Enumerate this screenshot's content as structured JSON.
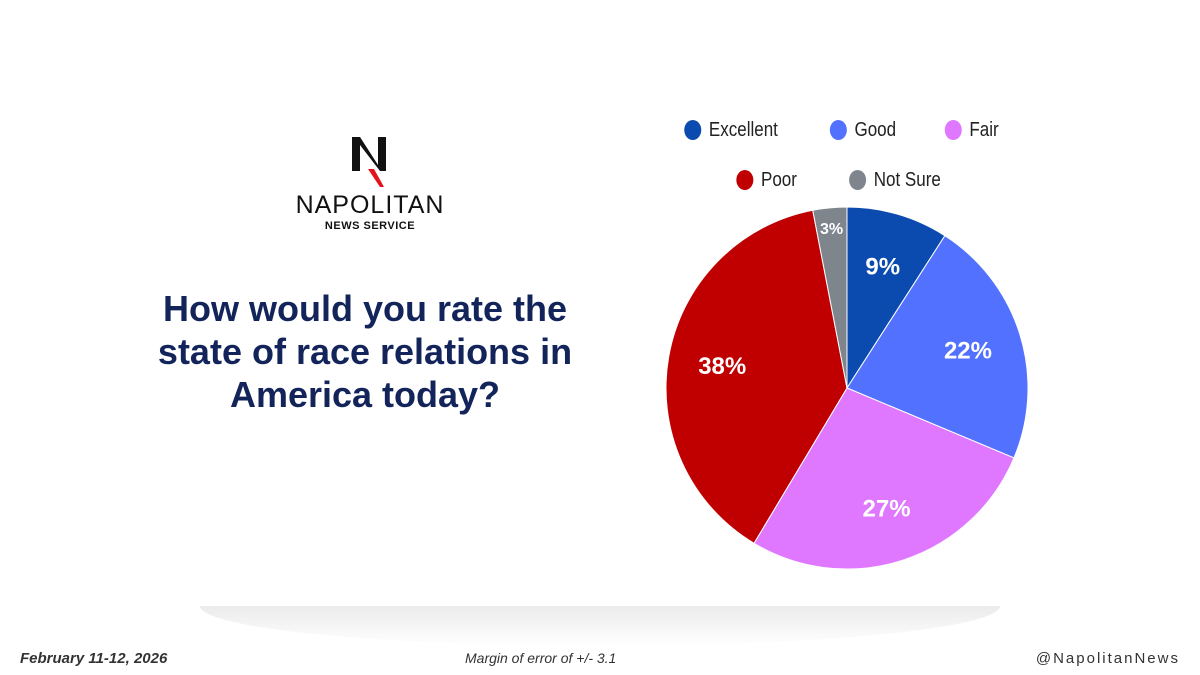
{
  "brand": {
    "name": "NAPOLITAN",
    "sub": "NEWS SERVICE"
  },
  "question": "How would you rate the state of race relations in America today?",
  "chart_data": {
    "type": "pie",
    "title": "How would you rate the state of race relations in America today?",
    "categories": [
      "Excellent",
      "Good",
      "Fair",
      "Poor",
      "Not Sure"
    ],
    "values": [
      9,
      22,
      27,
      38,
      3
    ],
    "labels": [
      "9%",
      "22%",
      "27%",
      "38%",
      "3%"
    ],
    "colors": [
      "#0b4aae",
      "#5271ff",
      "#df78ff",
      "#c00000",
      "#7f858d"
    ],
    "legend_placement": "top"
  },
  "footer": {
    "date": "February 11-12, 2026",
    "margin": "Margin of error of +/- 3.1",
    "handle": "@NapolitanNews"
  }
}
